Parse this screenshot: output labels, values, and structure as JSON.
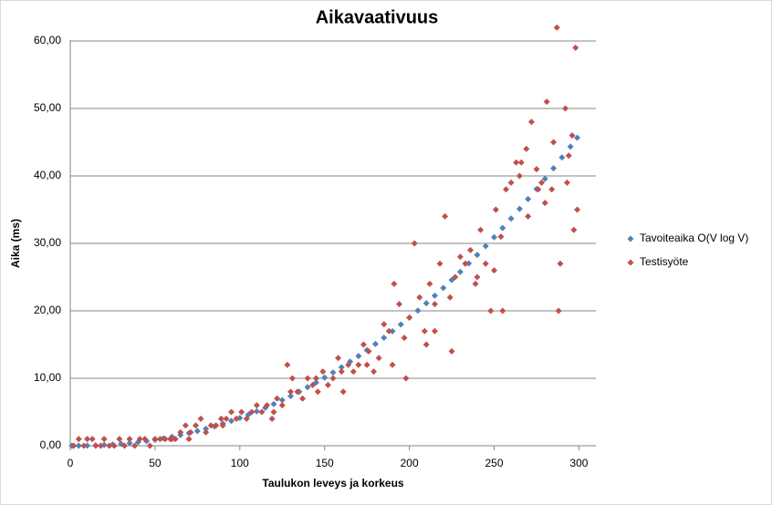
{
  "chart_data": {
    "type": "scatter",
    "title": "Aikavaativuus",
    "x_label": "Taulukon leveys ja korkeus",
    "y_label": "Aika (ms)",
    "xlim": [
      0,
      310
    ],
    "ylim": [
      0,
      60
    ],
    "xticks": [
      0,
      50,
      100,
      150,
      200,
      250,
      300
    ],
    "yticks": [
      {
        "value": 0,
        "label": "0,00"
      },
      {
        "value": 10,
        "label": "10,00"
      },
      {
        "value": 20,
        "label": "20,00"
      },
      {
        "value": 30,
        "label": "30,00"
      },
      {
        "value": 40,
        "label": "40,00"
      },
      {
        "value": 50,
        "label": "50,00"
      },
      {
        "value": 60,
        "label": "60,00"
      }
    ],
    "grid": true,
    "legend": "right",
    "series": [
      {
        "name": "Tavoiteaika O(V log V)",
        "color": "#4f81bd",
        "x": [
          1,
          5,
          10,
          15,
          20,
          25,
          30,
          35,
          40,
          45,
          50,
          55,
          60,
          65,
          70,
          75,
          80,
          85,
          90,
          95,
          100,
          105,
          110,
          115,
          120,
          125,
          130,
          135,
          140,
          145,
          150,
          155,
          160,
          165,
          170,
          175,
          180,
          185,
          190,
          195,
          200,
          205,
          210,
          215,
          220,
          225,
          230,
          235,
          240,
          245,
          250,
          255,
          260,
          265,
          270,
          275,
          280,
          285,
          290,
          295,
          299
        ],
        "values": [
          0,
          0,
          0.02,
          0.05,
          0.11,
          0.18,
          0.27,
          0.39,
          0.53,
          0.69,
          0.88,
          1.09,
          1.32,
          1.58,
          1.87,
          2.18,
          2.51,
          2.88,
          3.27,
          3.68,
          4.13,
          4.6,
          5.1,
          5.62,
          6.18,
          6.76,
          7.37,
          8.01,
          8.68,
          9.38,
          10.1,
          10.86,
          11.64,
          12.46,
          13.3,
          14.17,
          15.08,
          16.01,
          16.97,
          17.97,
          18.99,
          20.04,
          21.13,
          22.24,
          23.39,
          24.57,
          25.78,
          27.02,
          28.29,
          29.59,
          30.92,
          32.28,
          33.68,
          35.11,
          36.57,
          38.06,
          39.58,
          41.13,
          42.73,
          44.34,
          45.66
        ]
      },
      {
        "name": "Testisyöte",
        "color": "#c0504d",
        "x": [
          2,
          5,
          8,
          10,
          13,
          15,
          18,
          20,
          23,
          26,
          29,
          32,
          35,
          38,
          41,
          44,
          47,
          50,
          53,
          56,
          59,
          62,
          65,
          68,
          71,
          74,
          77,
          80,
          83,
          86,
          89,
          92,
          95,
          98,
          101,
          104,
          107,
          110,
          113,
          116,
          119,
          122,
          125,
          128,
          131,
          134,
          137,
          140,
          143,
          146,
          149,
          152,
          155,
          158,
          161,
          164,
          167,
          170,
          173,
          176,
          179,
          182,
          185,
          188,
          191,
          194,
          197,
          200,
          203,
          206,
          209,
          212,
          215,
          218,
          221,
          224,
          227,
          230,
          233,
          236,
          239,
          242,
          245,
          248,
          251,
          254,
          257,
          260,
          263,
          266,
          269,
          272,
          275,
          278,
          281,
          284,
          287,
          288,
          289,
          292,
          294,
          296,
          298,
          299,
          297,
          293,
          285,
          280,
          276,
          270,
          265,
          255,
          250,
          240,
          225,
          215,
          210,
          198,
          190,
          175,
          160,
          145,
          130,
          120,
          90,
          70,
          60
        ],
        "values": [
          0,
          1,
          0,
          1,
          1,
          0,
          0,
          1,
          0,
          0,
          1,
          0,
          1,
          0,
          1,
          1,
          0,
          1,
          1,
          1,
          1,
          1,
          2,
          3,
          2,
          3,
          4,
          2,
          3,
          3,
          4,
          4,
          5,
          4,
          5,
          4,
          5,
          6,
          5,
          6,
          4,
          7,
          6,
          12,
          10,
          8,
          7,
          10,
          9,
          8,
          11,
          9,
          10,
          13,
          8,
          12,
          11,
          12,
          15,
          14,
          11,
          13,
          18,
          17,
          24,
          21,
          16,
          19,
          30,
          22,
          17,
          24,
          21,
          27,
          34,
          22,
          25,
          28,
          27,
          29,
          24,
          32,
          27,
          20,
          35,
          31,
          38,
          39,
          42,
          42,
          44,
          48,
          41,
          39,
          51,
          38,
          62,
          20,
          27,
          50,
          43,
          46,
          59,
          35,
          32,
          39,
          45,
          36,
          38,
          34,
          40,
          20,
          26,
          25,
          14,
          17,
          15,
          10,
          12,
          12,
          11,
          10,
          8,
          5,
          3,
          1,
          1
        ]
      }
    ]
  }
}
